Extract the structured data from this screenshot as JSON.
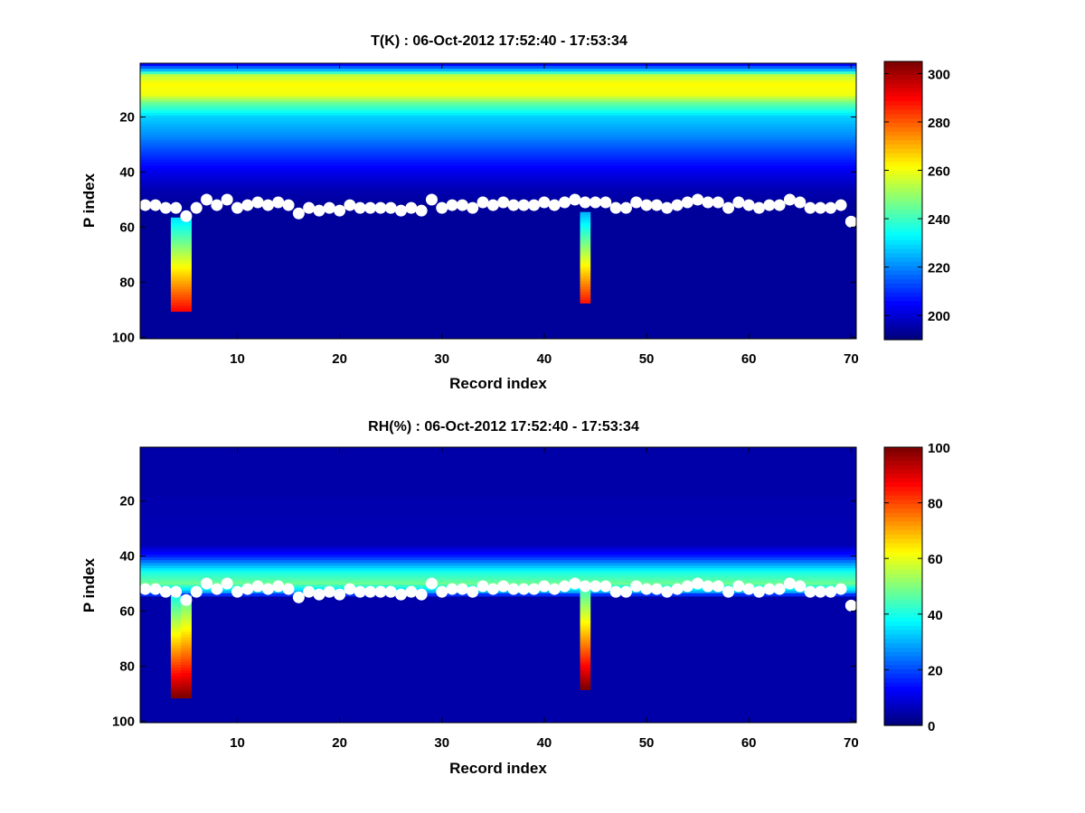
{
  "figure_background": "#ffffff",
  "chart_data": [
    {
      "type": "heatmap",
      "title": "T(K) : 06-Oct-2012 17:52:40 - 17:53:34",
      "xlabel": "Record index",
      "ylabel": "P index",
      "xlim": [
        0.5,
        70.5
      ],
      "ylim": [
        0.5,
        100.5
      ],
      "y_reversed": true,
      "x_ticks": [
        10,
        20,
        30,
        40,
        50,
        60,
        70
      ],
      "y_ticks": [
        20,
        40,
        60,
        80,
        100
      ],
      "colorbar": {
        "colormap": "jet",
        "clim": [
          190,
          305
        ],
        "ticks": [
          200,
          220,
          240,
          260,
          280,
          300
        ]
      },
      "field": {
        "background_value": 193,
        "profile": [
          {
            "p": 1,
            "value": 205
          },
          {
            "p": 3,
            "value": 225
          },
          {
            "p": 5,
            "value": 255
          },
          {
            "p": 8,
            "value": 262
          },
          {
            "p": 12,
            "value": 260
          },
          {
            "p": 15,
            "value": 245
          },
          {
            "p": 20,
            "value": 228
          },
          {
            "p": 27,
            "value": 220
          },
          {
            "p": 34,
            "value": 210
          },
          {
            "p": 40,
            "value": 202
          },
          {
            "p": 46,
            "value": 196
          },
          {
            "p": 52,
            "value": 193
          }
        ],
        "anomalies": [
          {
            "record": 4,
            "p_start": 57,
            "p_end": 90,
            "value_start": 230,
            "value_end": 290
          },
          {
            "record": 5,
            "p_start": 57,
            "p_end": 90,
            "value_start": 230,
            "value_end": 290
          },
          {
            "record": 44,
            "p_start": 55,
            "p_end": 87,
            "value_start": 225,
            "value_end": 288
          }
        ]
      },
      "series": [
        {
          "name": "markers",
          "x": [
            1,
            2,
            3,
            4,
            5,
            6,
            7,
            8,
            9,
            10,
            11,
            12,
            13,
            14,
            15,
            16,
            17,
            18,
            19,
            20,
            21,
            22,
            23,
            24,
            25,
            26,
            27,
            28,
            29,
            30,
            31,
            32,
            33,
            34,
            35,
            36,
            37,
            38,
            39,
            40,
            41,
            42,
            43,
            44,
            45,
            46,
            47,
            48,
            49,
            50,
            51,
            52,
            53,
            54,
            55,
            56,
            57,
            58,
            59,
            60,
            61,
            62,
            63,
            64,
            65,
            66,
            67,
            68,
            69,
            70
          ],
          "y": [
            52,
            52,
            53,
            53,
            56,
            53,
            50,
            52,
            50,
            53,
            52,
            51,
            52,
            51,
            52,
            55,
            53,
            54,
            53,
            54,
            52,
            53,
            53,
            53,
            53,
            54,
            53,
            54,
            50,
            53,
            52,
            52,
            53,
            51,
            52,
            51,
            52,
            52,
            52,
            51,
            52,
            51,
            50,
            51,
            51,
            51,
            53,
            53,
            51,
            52,
            52,
            53,
            52,
            51,
            50,
            51,
            51,
            53,
            51,
            52,
            53,
            52,
            52,
            50,
            51,
            53,
            53,
            53,
            52,
            58
          ]
        }
      ]
    },
    {
      "type": "heatmap",
      "title": "RH(%) : 06-Oct-2012 17:52:40 - 17:53:34",
      "xlabel": "Record index",
      "ylabel": "P index",
      "xlim": [
        0.5,
        70.5
      ],
      "ylim": [
        0.5,
        100.5
      ],
      "y_reversed": true,
      "x_ticks": [
        10,
        20,
        30,
        40,
        50,
        60,
        70
      ],
      "y_ticks": [
        20,
        40,
        60,
        80,
        100
      ],
      "colorbar": {
        "colormap": "jet",
        "clim": [
          0,
          100
        ],
        "ticks": [
          0,
          20,
          40,
          60,
          80,
          100
        ]
      },
      "field": {
        "background_value": 4,
        "profile": [
          {
            "p": 1,
            "value": 4
          },
          {
            "p": 36,
            "value": 5
          },
          {
            "p": 40,
            "value": 15
          },
          {
            "p": 43,
            "value": 28
          },
          {
            "p": 46,
            "value": 40
          },
          {
            "p": 50,
            "value": 48
          },
          {
            "p": 53,
            "value": 30
          },
          {
            "p": 55,
            "value": 4
          }
        ],
        "anomalies": [
          {
            "record": 4,
            "p_start": 55,
            "p_end": 91,
            "value_start": 40,
            "value_end": 100
          },
          {
            "record": 5,
            "p_start": 55,
            "p_end": 91,
            "value_start": 45,
            "value_end": 100
          },
          {
            "record": 44,
            "p_start": 53,
            "p_end": 88,
            "value_start": 45,
            "value_end": 100
          }
        ]
      },
      "series": [
        {
          "name": "markers",
          "x": [
            1,
            2,
            3,
            4,
            5,
            6,
            7,
            8,
            9,
            10,
            11,
            12,
            13,
            14,
            15,
            16,
            17,
            18,
            19,
            20,
            21,
            22,
            23,
            24,
            25,
            26,
            27,
            28,
            29,
            30,
            31,
            32,
            33,
            34,
            35,
            36,
            37,
            38,
            39,
            40,
            41,
            42,
            43,
            44,
            45,
            46,
            47,
            48,
            49,
            50,
            51,
            52,
            53,
            54,
            55,
            56,
            57,
            58,
            59,
            60,
            61,
            62,
            63,
            64,
            65,
            66,
            67,
            68,
            69,
            70
          ],
          "y": [
            52,
            52,
            53,
            53,
            56,
            53,
            50,
            52,
            50,
            53,
            52,
            51,
            52,
            51,
            52,
            55,
            53,
            54,
            53,
            54,
            52,
            53,
            53,
            53,
            53,
            54,
            53,
            54,
            50,
            53,
            52,
            52,
            53,
            51,
            52,
            51,
            52,
            52,
            52,
            51,
            52,
            51,
            50,
            51,
            51,
            51,
            53,
            53,
            51,
            52,
            52,
            53,
            52,
            51,
            50,
            51,
            51,
            53,
            51,
            52,
            53,
            52,
            52,
            50,
            51,
            53,
            53,
            53,
            52,
            58
          ]
        }
      ]
    }
  ]
}
